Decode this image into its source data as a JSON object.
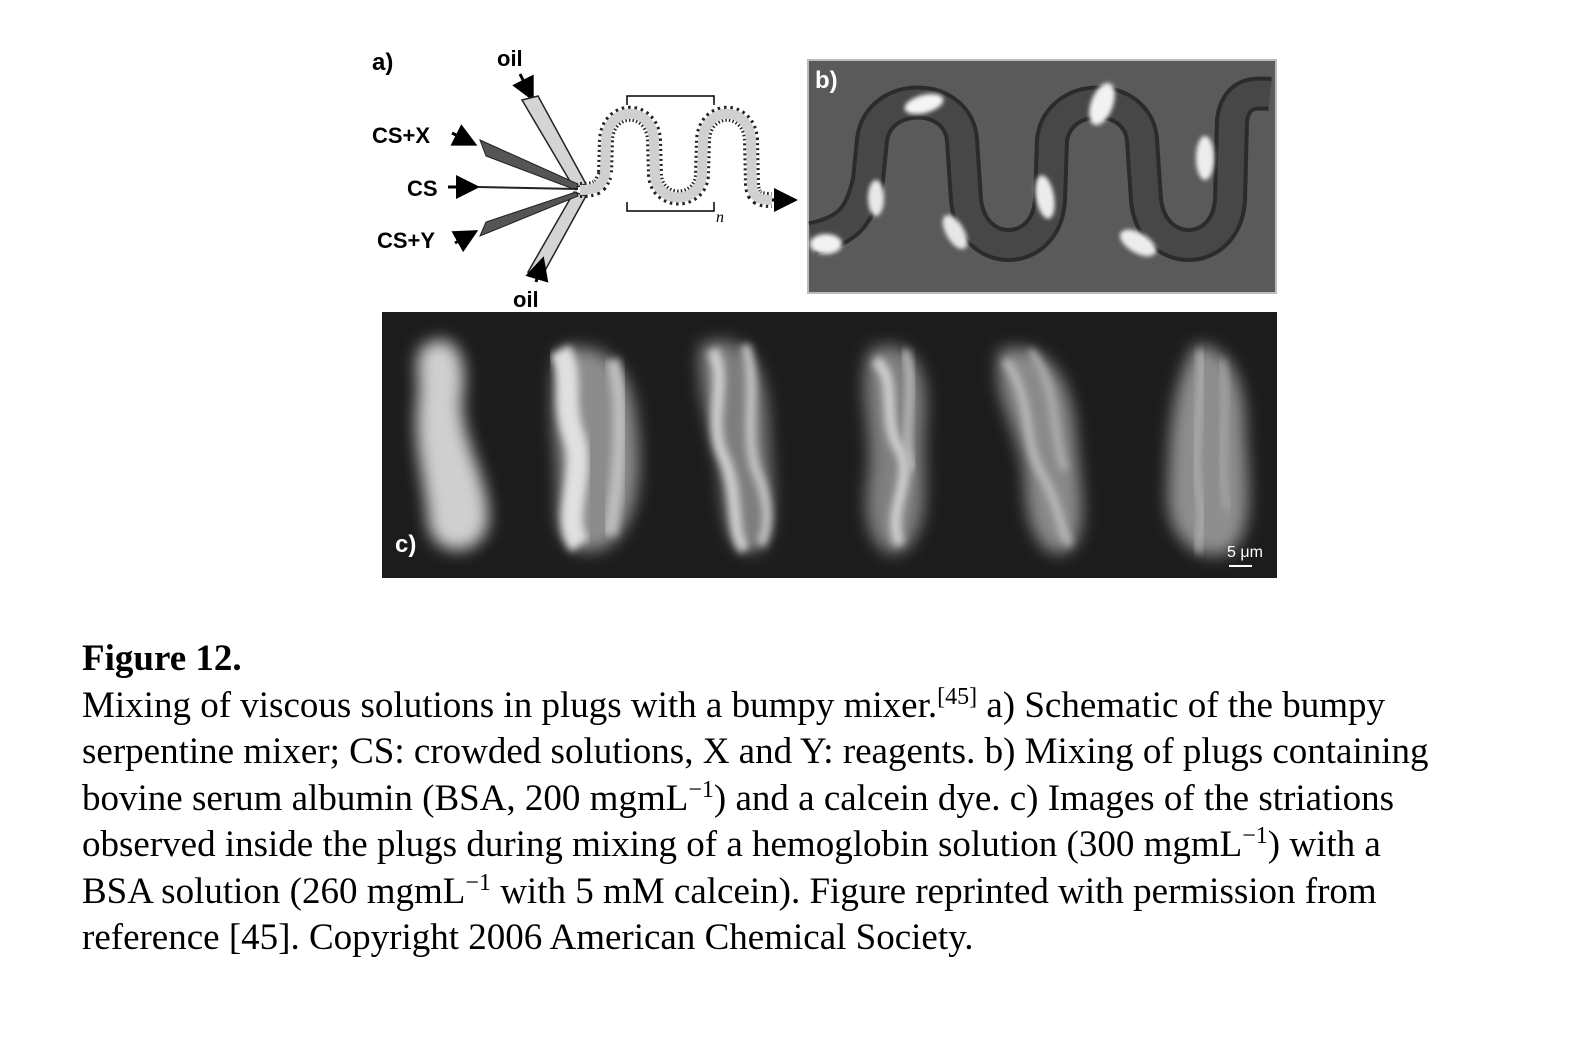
{
  "panel_a": {
    "label": "a)",
    "oil_top": "oil",
    "cs_x": "CS+X",
    "cs": "CS",
    "cs_y": "CS+Y",
    "oil_bottom": "oil",
    "repeat_n": "n"
  },
  "panel_b": {
    "label": "b)"
  },
  "panel_c": {
    "label": "c)",
    "scale_bar": "5 μm",
    "frame_count": 6
  },
  "caption": {
    "title": "Figure 12.",
    "l1_a": "Mixing of viscous solutions in plugs with a bumpy mixer.",
    "l1_ref": "[45]",
    "l1_b": " a) Schematic of the bumpy",
    "l2": "serpentine mixer; CS: crowded solutions, X and Y: reagents. b) Mixing of plugs containing",
    "l3_a": "bovine serum albumin (BSA, 200 mgmL",
    "l3_sup": "−1",
    "l3_b": ") and a calcein dye. c) Images of the striations",
    "l4_a": "observed inside the plugs during mixing of a hemoglobin solution (300 mgmL",
    "l4_sup": "−1",
    "l4_b": ") with a",
    "l5_a": "BSA solution (260 mgmL",
    "l5_sup": "−1",
    "l5_b": " with 5 mM calcein). Figure reprinted with permission from",
    "l6": "reference [45]. Copyright 2006 American Chemical Society."
  }
}
